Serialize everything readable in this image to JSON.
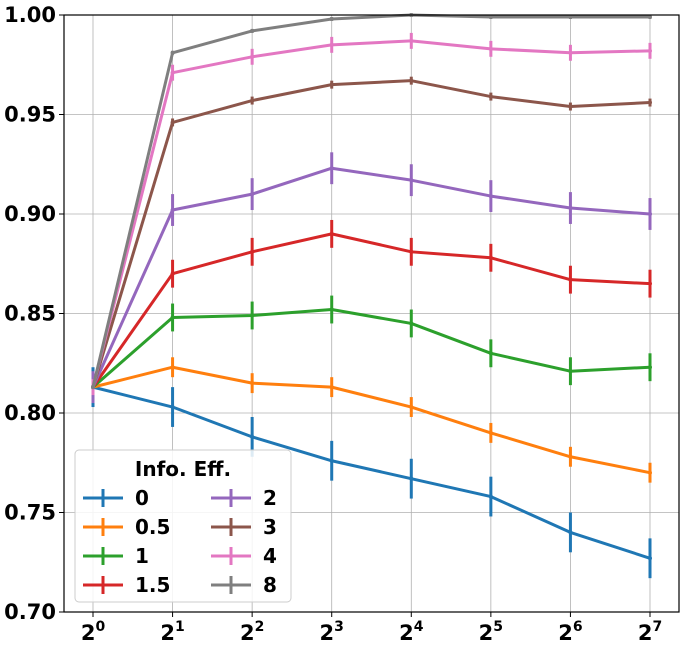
{
  "chart_data": {
    "type": "line",
    "title": "",
    "xlabel": "",
    "ylabel": "",
    "x_scale": "log2",
    "x": [
      1,
      2,
      4,
      8,
      16,
      32,
      64,
      128
    ],
    "x_tick_labels": [
      {
        "base": "2",
        "exp": "0"
      },
      {
        "base": "2",
        "exp": "1"
      },
      {
        "base": "2",
        "exp": "2"
      },
      {
        "base": "2",
        "exp": "3"
      },
      {
        "base": "2",
        "exp": "4"
      },
      {
        "base": "2",
        "exp": "5"
      },
      {
        "base": "2",
        "exp": "6"
      },
      {
        "base": "2",
        "exp": "7"
      }
    ],
    "ylim": [
      0.7,
      1.0
    ],
    "y_ticks": [
      "0.70",
      "0.75",
      "0.80",
      "0.85",
      "0.90",
      "0.95",
      "1.00"
    ],
    "grid": true,
    "legend": {
      "title": "Info. Eff.",
      "placement": "lower-left",
      "columns": 2
    },
    "series": [
      {
        "name": "0",
        "color": "#1f77b4",
        "values": [
          0.813,
          0.803,
          0.788,
          0.776,
          0.767,
          0.758,
          0.74,
          0.727
        ],
        "errors": [
          0.01,
          0.01,
          0.01,
          0.01,
          0.01,
          0.01,
          0.01,
          0.01
        ]
      },
      {
        "name": "0.5",
        "color": "#ff7f0e",
        "values": [
          0.813,
          0.823,
          0.815,
          0.813,
          0.803,
          0.79,
          0.778,
          0.77
        ],
        "errors": [
          0.005,
          0.005,
          0.005,
          0.005,
          0.005,
          0.005,
          0.005,
          0.005
        ]
      },
      {
        "name": "1",
        "color": "#2ca02c",
        "values": [
          0.813,
          0.848,
          0.849,
          0.852,
          0.845,
          0.83,
          0.821,
          0.823
        ],
        "errors": [
          0.007,
          0.007,
          0.007,
          0.007,
          0.007,
          0.007,
          0.007,
          0.007
        ]
      },
      {
        "name": "1.5",
        "color": "#d62728",
        "values": [
          0.813,
          0.87,
          0.881,
          0.89,
          0.881,
          0.878,
          0.867,
          0.865
        ],
        "errors": [
          0.007,
          0.007,
          0.007,
          0.007,
          0.007,
          0.007,
          0.007,
          0.007
        ]
      },
      {
        "name": "2",
        "color": "#9467bd",
        "values": [
          0.813,
          0.902,
          0.91,
          0.923,
          0.917,
          0.909,
          0.903,
          0.9
        ],
        "errors": [
          0.008,
          0.008,
          0.008,
          0.008,
          0.008,
          0.008,
          0.008,
          0.008
        ]
      },
      {
        "name": "3",
        "color": "#8c564b",
        "values": [
          0.813,
          0.946,
          0.957,
          0.965,
          0.967,
          0.959,
          0.954,
          0.956
        ],
        "errors": [
          0.002,
          0.002,
          0.002,
          0.002,
          0.002,
          0.002,
          0.002,
          0.002
        ]
      },
      {
        "name": "4",
        "color": "#e377c2",
        "values": [
          0.813,
          0.971,
          0.979,
          0.985,
          0.987,
          0.983,
          0.981,
          0.982
        ],
        "errors": [
          0.004,
          0.004,
          0.004,
          0.004,
          0.004,
          0.004,
          0.004,
          0.004
        ]
      },
      {
        "name": "8",
        "color": "#7f7f7f",
        "values": [
          0.813,
          0.981,
          0.992,
          0.998,
          1.0,
          0.999,
          0.999,
          0.999
        ],
        "errors": [
          0.001,
          0.001,
          0.001,
          0.001,
          0.001,
          0.001,
          0.001,
          0.001
        ]
      }
    ]
  }
}
